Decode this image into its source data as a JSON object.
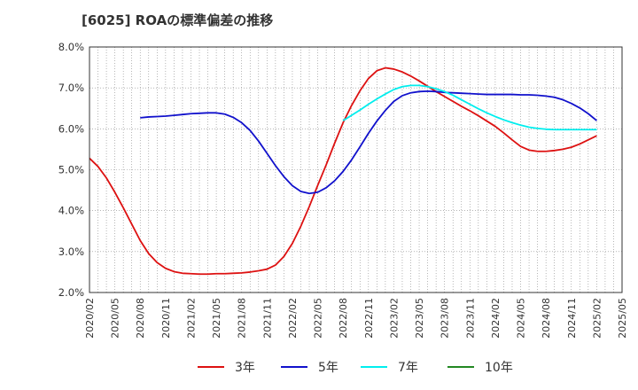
{
  "chart_data": {
    "type": "line",
    "title": "[6025]  ROAの標準偏差の推移",
    "xlabel": "",
    "ylabel": "",
    "ylim": [
      2.0,
      8.0
    ],
    "yticks": [
      "2.0%",
      "3.0%",
      "4.0%",
      "5.0%",
      "6.0%",
      "7.0%",
      "8.0%"
    ],
    "ytick_values": [
      2,
      3,
      4,
      5,
      6,
      7,
      8
    ],
    "x_range": [
      "2020/02",
      "2025/05"
    ],
    "xticks": [
      "2020/02",
      "2020/05",
      "2020/08",
      "2020/11",
      "2021/02",
      "2021/05",
      "2021/08",
      "2021/11",
      "2022/02",
      "2022/05",
      "2022/08",
      "2022/11",
      "2023/02",
      "2023/05",
      "2023/08",
      "2023/11",
      "2024/02",
      "2024/05",
      "2024/08",
      "2024/11",
      "2025/02",
      "2025/05"
    ],
    "grid": true,
    "legend_position": "bottom",
    "series": [
      {
        "name": "3年",
        "color": "#dd1111",
        "points": [
          [
            "2020/02",
            5.28
          ],
          [
            "2020/03",
            5.08
          ],
          [
            "2020/04",
            4.8
          ],
          [
            "2020/05",
            4.45
          ],
          [
            "2020/06",
            4.07
          ],
          [
            "2020/07",
            3.67
          ],
          [
            "2020/08",
            3.27
          ],
          [
            "2020/09",
            2.95
          ],
          [
            "2020/10",
            2.73
          ],
          [
            "2020/11",
            2.59
          ],
          [
            "2020/12",
            2.51
          ],
          [
            "2021/01",
            2.47
          ],
          [
            "2021/02",
            2.46
          ],
          [
            "2021/03",
            2.45
          ],
          [
            "2021/04",
            2.45
          ],
          [
            "2021/05",
            2.46
          ],
          [
            "2021/06",
            2.46
          ],
          [
            "2021/07",
            2.47
          ],
          [
            "2021/08",
            2.48
          ],
          [
            "2021/09",
            2.5
          ],
          [
            "2021/10",
            2.53
          ],
          [
            "2021/11",
            2.57
          ],
          [
            "2021/12",
            2.67
          ],
          [
            "2022/01",
            2.88
          ],
          [
            "2022/02",
            3.2
          ],
          [
            "2022/03",
            3.62
          ],
          [
            "2022/04",
            4.1
          ],
          [
            "2022/05",
            4.62
          ],
          [
            "2022/06",
            5.12
          ],
          [
            "2022/07",
            5.65
          ],
          [
            "2022/08",
            6.15
          ],
          [
            "2022/09",
            6.57
          ],
          [
            "2022/10",
            6.93
          ],
          [
            "2022/11",
            7.23
          ],
          [
            "2022/12",
            7.42
          ],
          [
            "2023/01",
            7.49
          ],
          [
            "2023/02",
            7.46
          ],
          [
            "2023/03",
            7.39
          ],
          [
            "2023/04",
            7.29
          ],
          [
            "2023/05",
            7.17
          ],
          [
            "2023/06",
            7.04
          ],
          [
            "2023/07",
            6.91
          ],
          [
            "2023/08",
            6.79
          ],
          [
            "2023/09",
            6.67
          ],
          [
            "2023/10",
            6.55
          ],
          [
            "2023/11",
            6.44
          ],
          [
            "2023/12",
            6.32
          ],
          [
            "2024/01",
            6.19
          ],
          [
            "2024/02",
            6.06
          ],
          [
            "2024/03",
            5.9
          ],
          [
            "2024/04",
            5.73
          ],
          [
            "2024/05",
            5.57
          ],
          [
            "2024/06",
            5.48
          ],
          [
            "2024/07",
            5.45
          ],
          [
            "2024/08",
            5.45
          ],
          [
            "2024/09",
            5.47
          ],
          [
            "2024/10",
            5.5
          ],
          [
            "2024/11",
            5.55
          ],
          [
            "2024/12",
            5.63
          ],
          [
            "2025/01",
            5.73
          ],
          [
            "2025/02",
            5.83
          ]
        ]
      },
      {
        "name": "5年",
        "color": "#1111cc",
        "points": [
          [
            "2020/08",
            6.27
          ],
          [
            "2020/09",
            6.29
          ],
          [
            "2020/10",
            6.3
          ],
          [
            "2020/11",
            6.31
          ],
          [
            "2020/12",
            6.33
          ],
          [
            "2021/01",
            6.35
          ],
          [
            "2021/02",
            6.37
          ],
          [
            "2021/03",
            6.38
          ],
          [
            "2021/04",
            6.39
          ],
          [
            "2021/05",
            6.39
          ],
          [
            "2021/06",
            6.36
          ],
          [
            "2021/07",
            6.28
          ],
          [
            "2021/08",
            6.15
          ],
          [
            "2021/09",
            5.96
          ],
          [
            "2021/10",
            5.7
          ],
          [
            "2021/11",
            5.4
          ],
          [
            "2021/12",
            5.1
          ],
          [
            "2022/01",
            4.83
          ],
          [
            "2022/02",
            4.61
          ],
          [
            "2022/03",
            4.47
          ],
          [
            "2022/04",
            4.42
          ],
          [
            "2022/05",
            4.45
          ],
          [
            "2022/06",
            4.56
          ],
          [
            "2022/07",
            4.73
          ],
          [
            "2022/08",
            4.96
          ],
          [
            "2022/09",
            5.24
          ],
          [
            "2022/10",
            5.56
          ],
          [
            "2022/11",
            5.89
          ],
          [
            "2022/12",
            6.19
          ],
          [
            "2023/01",
            6.45
          ],
          [
            "2023/02",
            6.67
          ],
          [
            "2023/03",
            6.81
          ],
          [
            "2023/04",
            6.88
          ],
          [
            "2023/05",
            6.91
          ],
          [
            "2023/06",
            6.92
          ],
          [
            "2023/07",
            6.91
          ],
          [
            "2023/08",
            6.89
          ],
          [
            "2023/09",
            6.88
          ],
          [
            "2023/10",
            6.87
          ],
          [
            "2023/11",
            6.86
          ],
          [
            "2023/12",
            6.85
          ],
          [
            "2024/01",
            6.84
          ],
          [
            "2024/02",
            6.84
          ],
          [
            "2024/03",
            6.84
          ],
          [
            "2024/04",
            6.84
          ],
          [
            "2024/05",
            6.83
          ],
          [
            "2024/06",
            6.83
          ],
          [
            "2024/07",
            6.82
          ],
          [
            "2024/08",
            6.8
          ],
          [
            "2024/09",
            6.77
          ],
          [
            "2024/10",
            6.71
          ],
          [
            "2024/11",
            6.62
          ],
          [
            "2024/12",
            6.51
          ],
          [
            "2025/01",
            6.37
          ],
          [
            "2025/02",
            6.2
          ]
        ]
      },
      {
        "name": "7年",
        "color": "#00eeee",
        "points": [
          [
            "2022/08",
            6.2
          ],
          [
            "2022/09",
            6.33
          ],
          [
            "2022/10",
            6.46
          ],
          [
            "2022/11",
            6.6
          ],
          [
            "2022/12",
            6.73
          ],
          [
            "2023/01",
            6.85
          ],
          [
            "2023/02",
            6.96
          ],
          [
            "2023/03",
            7.03
          ],
          [
            "2023/04",
            7.06
          ],
          [
            "2023/05",
            7.06
          ],
          [
            "2023/06",
            7.03
          ],
          [
            "2023/07",
            6.98
          ],
          [
            "2023/08",
            6.91
          ],
          [
            "2023/09",
            6.82
          ],
          [
            "2023/10",
            6.71
          ],
          [
            "2023/11",
            6.6
          ],
          [
            "2023/12",
            6.49
          ],
          [
            "2024/01",
            6.39
          ],
          [
            "2024/02",
            6.3
          ],
          [
            "2024/03",
            6.22
          ],
          [
            "2024/04",
            6.15
          ],
          [
            "2024/05",
            6.09
          ],
          [
            "2024/06",
            6.04
          ],
          [
            "2024/07",
            6.01
          ],
          [
            "2024/08",
            5.99
          ],
          [
            "2024/09",
            5.98
          ],
          [
            "2024/10",
            5.98
          ],
          [
            "2024/11",
            5.98
          ],
          [
            "2024/12",
            5.98
          ],
          [
            "2025/01",
            5.98
          ],
          [
            "2025/02",
            5.98
          ]
        ]
      },
      {
        "name": "10年",
        "color": "#228822",
        "points": []
      }
    ]
  }
}
